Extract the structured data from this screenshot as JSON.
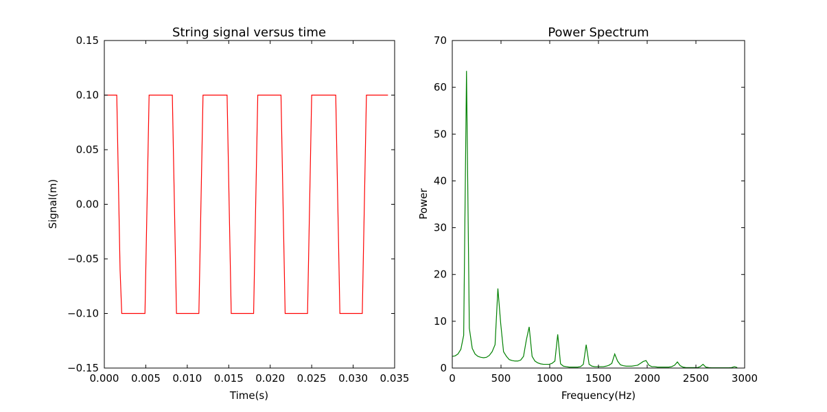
{
  "chart_data": [
    {
      "type": "line",
      "title": "String signal versus time",
      "xlabel": "Time(s)",
      "ylabel": "Signal(m)",
      "xlim": [
        0.0,
        0.035
      ],
      "ylim": [
        -0.15,
        0.15
      ],
      "xticks": [
        0.0,
        0.005,
        0.01,
        0.015,
        0.02,
        0.025,
        0.03,
        0.035
      ],
      "xtick_labels": [
        "0.000",
        "0.005",
        "0.010",
        "0.015",
        "0.020",
        "0.025",
        "0.030",
        "0.035"
      ],
      "yticks": [
        0.15,
        0.1,
        0.05,
        0.0,
        -0.05,
        -0.1,
        -0.15
      ],
      "ytick_labels": [
        "0.15",
        "0.10",
        "0.05",
        "0.00",
        "−0.05",
        "−0.10",
        "−0.15"
      ],
      "grid": false,
      "series": [
        {
          "color": "#ff0000",
          "x": [
            0.0,
            0.0012,
            0.0015,
            0.0016,
            0.0017,
            0.0018,
            0.0019,
            0.0021,
            0.0049,
            0.005,
            0.0051,
            0.0052,
            0.0053,
            0.0054,
            0.0056,
            0.0082,
            0.0083,
            0.0084,
            0.0085,
            0.0086,
            0.0087,
            0.0088,
            0.0114,
            0.0115,
            0.0116,
            0.0117,
            0.0118,
            0.0119,
            0.012,
            0.0148,
            0.0149,
            0.015,
            0.0151,
            0.0152,
            0.0153,
            0.0155,
            0.018,
            0.0181,
            0.0182,
            0.0183,
            0.0184,
            0.0185,
            0.0187,
            0.0213,
            0.0214,
            0.0215,
            0.0216,
            0.0217,
            0.0218,
            0.0219,
            0.0245,
            0.0246,
            0.0247,
            0.0248,
            0.0249,
            0.025,
            0.0252,
            0.0279,
            0.028,
            0.0281,
            0.0282,
            0.0283,
            0.0284,
            0.0285,
            0.0311,
            0.0312,
            0.0313,
            0.0314,
            0.0315,
            0.0316,
            0.0318,
            0.0342
          ],
          "y": [
            0.1,
            0.1,
            0.1,
            0.06,
            0.02,
            -0.02,
            -0.06,
            -0.1,
            -0.1,
            -0.06,
            -0.02,
            0.02,
            0.06,
            0.1,
            0.1,
            0.1,
            0.06,
            0.02,
            -0.02,
            -0.06,
            -0.1,
            -0.1,
            -0.1,
            -0.06,
            -0.02,
            0.02,
            0.06,
            0.1,
            0.1,
            0.1,
            0.06,
            0.02,
            -0.02,
            -0.06,
            -0.1,
            -0.1,
            -0.1,
            -0.06,
            -0.02,
            0.02,
            0.06,
            0.1,
            0.1,
            0.1,
            0.06,
            0.02,
            -0.02,
            -0.06,
            -0.1,
            -0.1,
            -0.1,
            -0.06,
            -0.02,
            0.02,
            0.06,
            0.1,
            0.1,
            0.1,
            0.06,
            0.02,
            -0.02,
            -0.06,
            -0.1,
            -0.1,
            -0.1,
            -0.06,
            -0.02,
            0.02,
            0.06,
            0.1,
            0.1,
            0.1
          ]
        }
      ]
    },
    {
      "type": "line",
      "title": "Power Spectrum",
      "xlabel": "Frequency(Hz)",
      "ylabel": "Power",
      "xlim": [
        0,
        3000
      ],
      "ylim": [
        0,
        70
      ],
      "xticks": [
        0,
        500,
        1000,
        1500,
        2000,
        2500,
        3000
      ],
      "xtick_labels": [
        "0",
        "500",
        "1000",
        "1500",
        "2000",
        "2500",
        "3000"
      ],
      "yticks": [
        70,
        60,
        50,
        40,
        30,
        20,
        10,
        0
      ],
      "ytick_labels": [
        "70",
        "60",
        "50",
        "40",
        "30",
        "20",
        "10",
        "0"
      ],
      "grid": false,
      "series": [
        {
          "color": "#008000",
          "x": [
            0,
            29,
            58,
            88,
            117,
            146,
            175,
            205,
            234,
            263,
            292,
            322,
            351,
            380,
            409,
            439,
            468,
            497,
            526,
            556,
            585,
            614,
            643,
            673,
            702,
            731,
            760,
            789,
            819,
            848,
            877,
            906,
            936,
            965,
            994,
            1023,
            1053,
            1082,
            1111,
            1140,
            1170,
            1199,
            1228,
            1257,
            1287,
            1316,
            1345,
            1374,
            1404,
            1433,
            1462,
            1491,
            1520,
            1550,
            1579,
            1608,
            1637,
            1667,
            1696,
            1725,
            1754,
            1784,
            1813,
            1842,
            1871,
            1901,
            1930,
            1959,
            1988,
            2018,
            2047,
            2076,
            2105,
            2135,
            2164,
            2193,
            2222,
            2251,
            2281,
            2310,
            2339,
            2368,
            2398,
            2427,
            2456,
            2485,
            2515,
            2544,
            2573,
            2602,
            2632,
            2661,
            2690,
            2719,
            2749,
            2778,
            2807,
            2836,
            2866,
            2895,
            2924
          ],
          "y": [
            2.5,
            2.6,
            3.0,
            4.0,
            7.0,
            63.5,
            8.5,
            4.2,
            3.0,
            2.5,
            2.3,
            2.2,
            2.3,
            2.7,
            3.5,
            5.0,
            17.0,
            9.5,
            3.5,
            2.5,
            1.8,
            1.6,
            1.5,
            1.5,
            1.7,
            2.5,
            6.0,
            8.8,
            2.5,
            1.5,
            1.1,
            0.9,
            0.8,
            0.8,
            0.8,
            1.0,
            1.5,
            7.2,
            0.9,
            0.4,
            0.3,
            0.2,
            0.2,
            0.2,
            0.2,
            0.3,
            0.8,
            5.0,
            0.8,
            0.4,
            0.3,
            0.3,
            0.3,
            0.3,
            0.4,
            0.6,
            1.0,
            3.0,
            1.5,
            0.7,
            0.5,
            0.4,
            0.4,
            0.4,
            0.5,
            0.6,
            1.0,
            1.4,
            1.6,
            0.6,
            0.3,
            0.3,
            0.2,
            0.2,
            0.2,
            0.2,
            0.2,
            0.3,
            0.6,
            1.3,
            0.5,
            0.2,
            0.1,
            0.1,
            0.1,
            0.1,
            0.1,
            0.3,
            0.8,
            0.2,
            0.1,
            0.05,
            0.05,
            0.05,
            0.05,
            0.05,
            0.05,
            0.05,
            0.1,
            0.3,
            0.1
          ]
        }
      ]
    }
  ]
}
